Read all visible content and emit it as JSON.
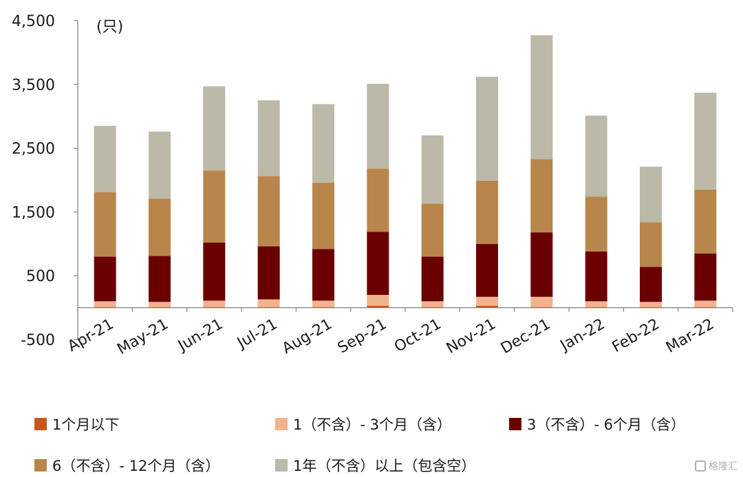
{
  "chart_data": {
    "type": "stacked_bar",
    "unit_label": "(只)",
    "categories": [
      "Apr-21",
      "May-21",
      "Jun-21",
      "Jul-21",
      "Aug-21",
      "Sep-21",
      "Oct-21",
      "Nov-21",
      "Dec-21",
      "Jan-22",
      "Feb-22",
      "Mar-22"
    ],
    "ylim": [
      -500,
      4500
    ],
    "yticks": [
      -500,
      500,
      1500,
      2500,
      3500,
      4500
    ],
    "ytick_labels": [
      "-500",
      "500",
      "1,500",
      "2,500",
      "3,500",
      "4,500"
    ],
    "grid": false,
    "legend_position": "bottom",
    "series": [
      {
        "name": "1个月以下",
        "color": "#c8571c",
        "values": [
          10,
          10,
          10,
          10,
          10,
          30,
          10,
          30,
          10,
          10,
          10,
          10
        ]
      },
      {
        "name": "1（不含）- 3个月（含）",
        "color": "#f2b48c",
        "values": [
          90,
          80,
          100,
          120,
          100,
          170,
          90,
          140,
          160,
          90,
          80,
          100
        ]
      },
      {
        "name": "3（不含）- 6个月（含）",
        "color": "#6b0000",
        "values": [
          700,
          720,
          910,
          830,
          810,
          990,
          700,
          830,
          1010,
          780,
          550,
          740
        ]
      },
      {
        "name": "6（不含）- 12个月（含）",
        "color": "#b8864a",
        "values": [
          1010,
          900,
          1130,
          1100,
          1040,
          990,
          830,
          990,
          1150,
          860,
          700,
          1000
        ]
      },
      {
        "name": "1年（不含）以上（包含空）",
        "color": "#bcb9a8",
        "values": [
          1040,
          1050,
          1320,
          1190,
          1230,
          1330,
          1070,
          1630,
          1940,
          1270,
          870,
          1520
        ]
      }
    ]
  },
  "watermark": {
    "text": "格隆汇"
  }
}
